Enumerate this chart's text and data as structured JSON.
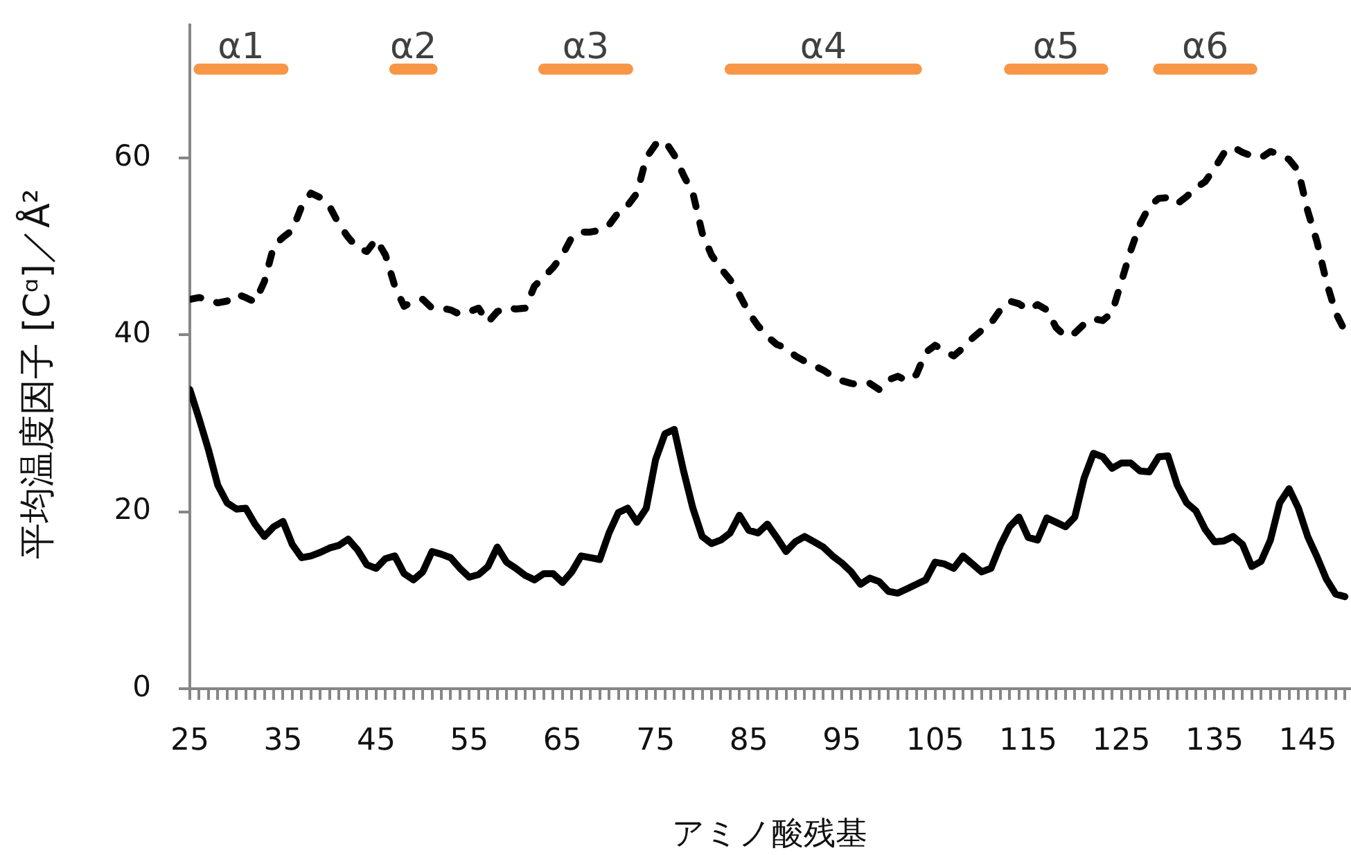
{
  "chart_data": {
    "type": "line",
    "xlabel": "アミノ酸残基",
    "ylabel": "平均温度因子 [Cᵅ]／Å²",
    "xlim": [
      25,
      149.5
    ],
    "ylim": [
      0,
      75
    ],
    "yticks": [
      0,
      20,
      40,
      60
    ],
    "xticks": [
      25,
      {
        "value": 26,
        "label": null
      },
      {
        "value": 27,
        "label": null
      },
      {
        "value": 28,
        "label": null
      },
      {
        "value": 29,
        "label": null
      },
      {
        "value": 30,
        "label": null
      },
      {
        "value": 31,
        "label": null
      },
      {
        "value": 32,
        "label": null
      },
      {
        "value": 33,
        "label": null
      },
      {
        "value": 34,
        "label": null
      },
      35,
      {
        "value": 36,
        "label": null
      },
      {
        "value": 37,
        "label": null
      },
      {
        "value": 38,
        "label": null
      },
      {
        "value": 39,
        "label": null
      },
      {
        "value": 40,
        "label": null
      },
      {
        "value": 41,
        "label": null
      },
      {
        "value": 42,
        "label": null
      },
      {
        "value": 43,
        "label": null
      },
      {
        "value": 44,
        "label": null
      },
      45,
      {
        "value": 46,
        "label": null
      },
      {
        "value": 47,
        "label": null
      },
      {
        "value": 48,
        "label": null
      },
      {
        "value": 49,
        "label": null
      },
      {
        "value": 50,
        "label": null
      },
      {
        "value": 51,
        "label": null
      },
      {
        "value": 52,
        "label": null
      },
      {
        "value": 53,
        "label": null
      },
      {
        "value": 54,
        "label": null
      },
      55,
      {
        "value": 56,
        "label": null
      },
      {
        "value": 57,
        "label": null
      },
      {
        "value": 58,
        "label": null
      },
      {
        "value": 59,
        "label": null
      },
      {
        "value": 60,
        "label": null
      },
      {
        "value": 61,
        "label": null
      },
      {
        "value": 62,
        "label": null
      },
      {
        "value": 63,
        "label": null
      },
      {
        "value": 64,
        "label": null
      },
      65,
      {
        "value": 66,
        "label": null
      },
      {
        "value": 67,
        "label": null
      },
      {
        "value": 68,
        "label": null
      },
      {
        "value": 69,
        "label": null
      },
      {
        "value": 70,
        "label": null
      },
      {
        "value": 71,
        "label": null
      },
      {
        "value": 72,
        "label": null
      },
      {
        "value": 73,
        "label": null
      },
      {
        "value": 74,
        "label": null
      },
      75,
      {
        "value": 76,
        "label": null
      },
      {
        "value": 77,
        "label": null
      },
      {
        "value": 78,
        "label": null
      },
      {
        "value": 79,
        "label": null
      },
      {
        "value": 80,
        "label": null
      },
      {
        "value": 81,
        "label": null
      },
      {
        "value": 82,
        "label": null
      },
      {
        "value": 83,
        "label": null
      },
      {
        "value": 84,
        "label": null
      },
      85,
      {
        "value": 86,
        "label": null
      },
      {
        "value": 87,
        "label": null
      },
      {
        "value": 88,
        "label": null
      },
      {
        "value": 89,
        "label": null
      },
      {
        "value": 90,
        "label": null
      },
      {
        "value": 91,
        "label": null
      },
      {
        "value": 92,
        "label": null
      },
      {
        "value": 93,
        "label": null
      },
      {
        "value": 94,
        "label": null
      },
      95,
      {
        "value": 96,
        "label": null
      },
      {
        "value": 97,
        "label": null
      },
      {
        "value": 98,
        "label": null
      },
      {
        "value": 99,
        "label": null
      },
      {
        "value": 100,
        "label": null
      },
      {
        "value": 101,
        "label": null
      },
      {
        "value": 102,
        "label": null
      },
      {
        "value": 103,
        "label": null
      },
      {
        "value": 104,
        "label": null
      },
      105,
      {
        "value": 106,
        "label": null
      },
      {
        "value": 107,
        "label": null
      },
      {
        "value": 108,
        "label": null
      },
      {
        "value": 109,
        "label": null
      },
      {
        "value": 110,
        "label": null
      },
      {
        "value": 111,
        "label": null
      },
      {
        "value": 112,
        "label": null
      },
      {
        "value": 113,
        "label": null
      },
      {
        "value": 114,
        "label": null
      },
      115,
      {
        "value": 116,
        "label": null
      },
      {
        "value": 117,
        "label": null
      },
      {
        "value": 118,
        "label": null
      },
      {
        "value": 119,
        "label": null
      },
      {
        "value": 120,
        "label": null
      },
      {
        "value": 121,
        "label": null
      },
      {
        "value": 122,
        "label": null
      },
      {
        "value": 123,
        "label": null
      },
      {
        "value": 124,
        "label": null
      },
      125,
      {
        "value": 126,
        "label": null
      },
      {
        "value": 127,
        "label": null
      },
      {
        "value": 128,
        "label": null
      },
      {
        "value": 129,
        "label": null
      },
      {
        "value": 130,
        "label": null
      },
      {
        "value": 131,
        "label": null
      },
      {
        "value": 132,
        "label": null
      },
      {
        "value": 133,
        "label": null
      },
      {
        "value": 134,
        "label": null
      },
      135,
      {
        "value": 136,
        "label": null
      },
      {
        "value": 137,
        "label": null
      },
      {
        "value": 138,
        "label": null
      },
      {
        "value": 139,
        "label": null
      },
      {
        "value": 140,
        "label": null
      },
      {
        "value": 141,
        "label": null
      },
      {
        "value": 142,
        "label": null
      },
      {
        "value": 143,
        "label": null
      },
      {
        "value": 144,
        "label": null
      },
      145,
      {
        "value": 146,
        "label": null
      },
      {
        "value": 147,
        "label": null
      },
      {
        "value": 148,
        "label": null
      },
      {
        "value": 149,
        "label": null
      }
    ],
    "x": [
      25,
      26,
      27,
      28,
      29,
      30,
      31,
      32,
      33,
      34,
      35,
      36,
      37,
      38,
      39,
      40,
      41,
      42,
      43,
      44,
      45,
      46,
      47,
      48,
      49,
      50,
      51,
      52,
      53,
      54,
      55,
      56,
      57,
      58,
      59,
      60,
      61,
      62,
      63,
      64,
      65,
      66,
      67,
      68,
      69,
      70,
      71,
      72,
      73,
      74,
      75,
      76,
      77,
      78,
      79,
      80,
      81,
      82,
      83,
      84,
      85,
      86,
      87,
      88,
      89,
      90,
      91,
      92,
      93,
      94,
      95,
      96,
      97,
      98,
      99,
      100,
      101,
      102,
      103,
      104,
      105,
      106,
      107,
      108,
      109,
      110,
      111,
      112,
      113,
      114,
      115,
      116,
      117,
      118,
      119,
      120,
      121,
      122,
      123,
      124,
      125,
      126,
      127,
      128,
      129,
      130,
      131,
      132,
      133,
      134,
      135,
      136,
      137,
      138,
      139,
      140,
      141,
      142,
      143,
      144,
      145,
      146,
      147,
      148,
      149
    ],
    "series": [
      {
        "color": "#000000",
        "line_style": "dashed",
        "values": [
          44,
          44.2,
          44,
          43.6,
          43.8,
          44.6,
          44.2,
          43.7,
          46,
          50,
          51,
          51.8,
          54.5,
          56,
          55.5,
          54.5,
          52.5,
          51,
          49.8,
          49.4,
          50.8,
          49,
          45.5,
          43.2,
          43.8,
          44,
          43,
          43,
          42.8,
          42.3,
          42.6,
          43,
          41.4,
          42.6,
          43.1,
          42.9,
          43,
          45.5,
          46.5,
          47.6,
          49,
          51,
          51.6,
          51.6,
          51.8,
          52.4,
          53.8,
          54.6,
          56,
          60,
          61.5,
          61.9,
          60.3,
          58,
          56,
          51.5,
          49,
          47.5,
          46.2,
          44.5,
          42.5,
          41,
          39.8,
          38.9,
          38.5,
          37.6,
          37,
          36.5,
          36,
          35.3,
          34.8,
          34.5,
          34.3,
          34.5,
          33.8,
          34.9,
          35.3,
          34.8,
          35.5,
          38,
          38.8,
          38.2,
          37.6,
          38.5,
          39.6,
          40.5,
          41.3,
          42.8,
          43.8,
          43.5,
          42.8,
          43.4,
          42.8,
          40.8,
          39.8,
          40.2,
          41.2,
          41.8,
          41.6,
          42.5,
          46,
          49.5,
          52.5,
          54.5,
          55.4,
          55.5,
          54.8,
          55.6,
          56.6,
          57.3,
          58.8,
          60.5,
          61.2,
          60.6,
          60.2,
          60,
          60.7,
          60.4,
          59.8,
          58.5,
          54,
          50.5,
          46,
          42.5,
          40.4
        ]
      },
      {
        "color": "#000000",
        "line_style": "solid",
        "values": [
          33.8,
          30.5,
          27,
          23,
          21,
          20.3,
          20.4,
          18.6,
          17.2,
          18.3,
          18.9,
          16.3,
          14.8,
          15,
          15.4,
          15.9,
          16.2,
          16.9,
          15.7,
          14,
          13.6,
          14.7,
          15,
          13,
          12.3,
          13.2,
          15.5,
          15.2,
          14.8,
          13.6,
          12.6,
          12.9,
          13.8,
          16,
          14.3,
          13.6,
          12.8,
          12.3,
          13,
          13,
          12,
          13.2,
          15,
          14.8,
          14.6,
          17.6,
          19.9,
          20.4,
          18.8,
          20.4,
          25.9,
          28.8,
          29.3,
          24.6,
          20.4,
          17.2,
          16.4,
          16.8,
          17.6,
          19.6,
          17.9,
          17.6,
          18.6,
          17.1,
          15.5,
          16.6,
          17.2,
          16.6,
          16,
          15,
          14.2,
          13.2,
          11.8,
          12.5,
          12.1,
          11,
          10.8,
          11.3,
          11.8,
          12.3,
          14.3,
          14.1,
          13.6,
          15,
          14.1,
          13.2,
          13.6,
          16.2,
          18.3,
          19.4,
          17.1,
          16.8,
          19.3,
          18.8,
          18.3,
          19.4,
          23.8,
          26.6,
          26.2,
          24.9,
          25.5,
          25.5,
          24.6,
          24.5,
          26.2,
          26.3,
          23,
          21,
          20.1,
          18,
          16.6,
          16.7,
          17.2,
          16.3,
          13.8,
          14.4,
          16.8,
          21,
          22.6,
          20.4,
          17.2,
          14.9,
          12.4,
          10.7,
          10.4
        ]
      },
      {
        "name": "α1",
        "color": "#f79646",
        "x": [
          26,
          35
        ],
        "values": [
          70,
          70
        ]
      },
      {
        "name": "α2",
        "color": "#f79646",
        "x": [
          47,
          51
        ],
        "values": [
          70,
          70
        ]
      },
      {
        "name": "α3",
        "color": "#f79646",
        "x": [
          63,
          72
        ],
        "values": [
          70,
          70
        ]
      },
      {
        "name": "α4",
        "color": "#f79646",
        "x": [
          83,
          103
        ],
        "values": [
          70,
          70
        ]
      },
      {
        "name": "α5",
        "color": "#f79646",
        "x": [
          113,
          123
        ],
        "values": [
          70,
          70
        ]
      },
      {
        "name": "α6",
        "color": "#f79646",
        "x": [
          129,
          139
        ],
        "values": [
          70,
          70
        ]
      }
    ]
  }
}
